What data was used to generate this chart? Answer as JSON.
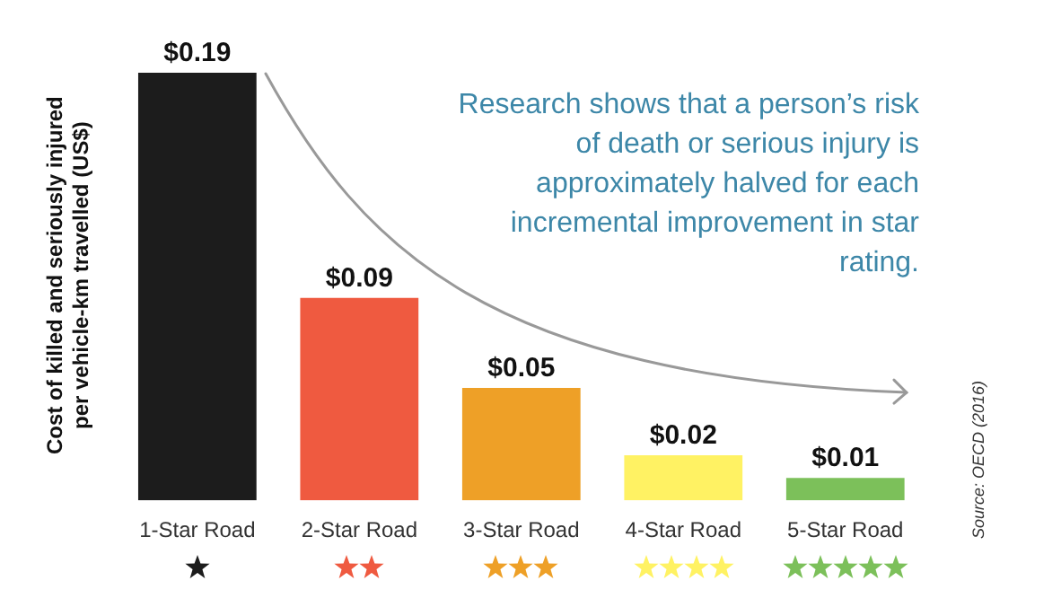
{
  "chart_data": {
    "type": "bar",
    "ylabel": "Cost of killed and seriously injured per vehicle-km travelled (US$)",
    "categories": [
      "1-Star Road",
      "2-Star Road",
      "3-Star Road",
      "4-Star Road",
      "5-Star Road"
    ],
    "values": [
      0.19,
      0.09,
      0.05,
      0.02,
      0.01
    ],
    "colors": [
      "#1c1c1c",
      "#ef5a40",
      "#eea027",
      "#fff263",
      "#7cc05a"
    ],
    "value_labels": [
      "$0.19",
      "$0.09",
      "$0.05",
      "$0.02",
      "$0.01"
    ],
    "grid": false,
    "legend": false,
    "annotations": [
      "Research shows that a person’s risk of death or serious injury is approximately halved for each incremental improvement in star rating.",
      "Source: OECD (2016)"
    ]
  }
}
